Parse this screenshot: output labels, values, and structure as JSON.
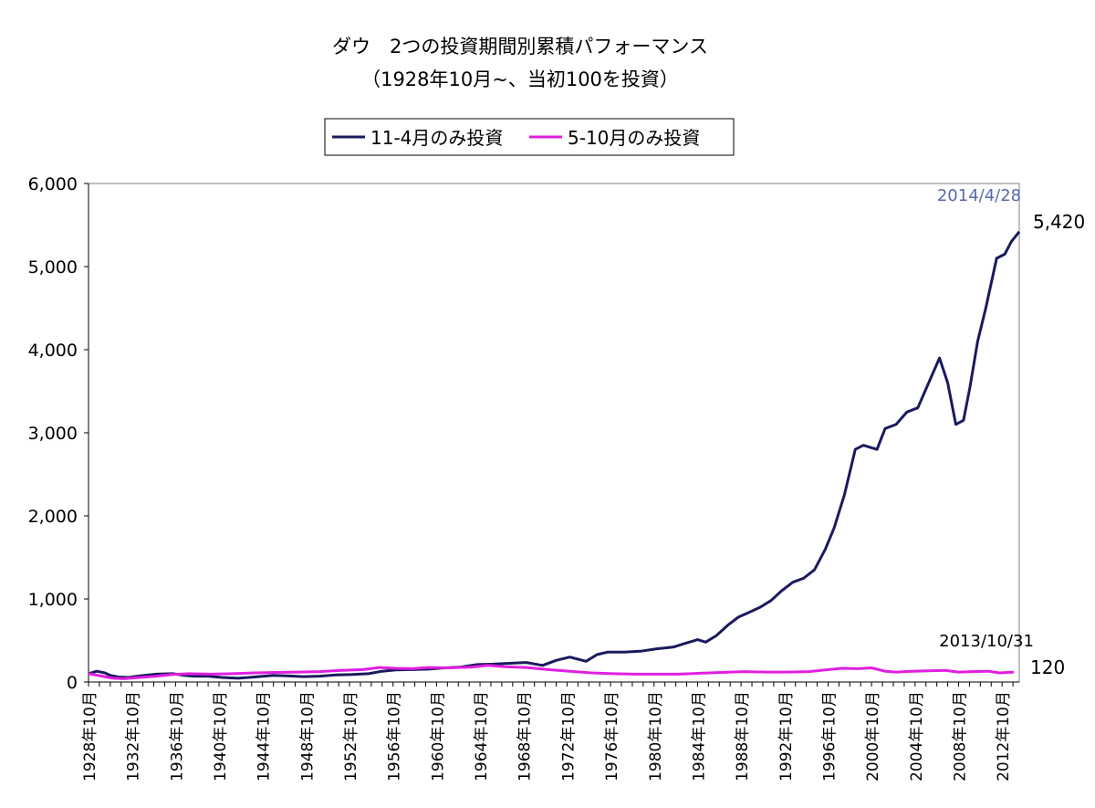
{
  "chart_data": {
    "type": "line",
    "title": "ダウ　2つの投資期間別累積パフォーマンス",
    "subtitle": "（1928年10月~、当初100を投資）",
    "xlabel": "",
    "ylabel": "",
    "ylim": [
      0,
      6000
    ],
    "yticks": [
      "6,000",
      "5,000",
      "4,000",
      "3,000",
      "2,000",
      "1,000",
      "0"
    ],
    "ytick_values": [
      6000,
      5000,
      4000,
      3000,
      2000,
      1000,
      0
    ],
    "xlim": [
      1928.75,
      2014.33
    ],
    "xticks": [
      "1928年10月",
      "1932年10月",
      "1936年10月",
      "1940年10月",
      "1944年10月",
      "1948年10月",
      "1952年10月",
      "1956年10月",
      "1960年10月",
      "1964年10月",
      "1968年10月",
      "1972年10月",
      "1976年10月",
      "1980年10月",
      "1984年10月",
      "1988年10月",
      "1992年10月",
      "1996年10月",
      "2000年10月",
      "2004年10月",
      "2008年10月",
      "2012年10月"
    ],
    "xtick_values": [
      1928.75,
      1932.75,
      1936.75,
      1940.75,
      1944.75,
      1948.75,
      1952.75,
      1956.75,
      1960.75,
      1964.75,
      1968.75,
      1972.75,
      1976.75,
      1980.75,
      1984.75,
      1988.75,
      1992.75,
      1996.75,
      2000.75,
      2004.75,
      2008.75,
      2012.75
    ],
    "grid": "horizontal",
    "legend": "top-center",
    "series": [
      {
        "name": "11-4月のみ投資",
        "color": "#1a1a5e",
        "x": [
          1928.75,
          1929.5,
          1930.25,
          1930.75,
          1931.5,
          1932.4,
          1933.5,
          1935.0,
          1936.5,
          1937.5,
          1938.5,
          1939.75,
          1941.0,
          1942.5,
          1944.0,
          1945.75,
          1947.0,
          1948.5,
          1950.0,
          1951.5,
          1953.0,
          1954.5,
          1955.75,
          1957.0,
          1958.5,
          1960.0,
          1961.5,
          1963.0,
          1964.5,
          1966.0,
          1967.5,
          1969.0,
          1970.5,
          1971.75,
          1973.0,
          1974.5,
          1975.5,
          1976.5,
          1978.0,
          1979.5,
          1981.0,
          1982.5,
          1983.75,
          1984.75,
          1985.5,
          1986.5,
          1987.5,
          1988.5,
          1989.5,
          1990.5,
          1991.5,
          1992.5,
          1993.5,
          1994.5,
          1995.5,
          1996.5,
          1997.3,
          1998.25,
          1999.25,
          2000.0,
          2000.75,
          2001.25,
          2002.0,
          2003.0,
          2004.0,
          2005.0,
          2006.0,
          2007.0,
          2007.75,
          2008.5,
          2009.2,
          2009.8,
          2010.5,
          2011.25,
          2012.25,
          2013.0,
          2013.6,
          2014.33
        ],
        "values": [
          100,
          130,
          110,
          80,
          60,
          55,
          75,
          95,
          100,
          80,
          70,
          70,
          55,
          45,
          60,
          80,
          75,
          65,
          70,
          85,
          90,
          100,
          130,
          145,
          150,
          155,
          170,
          180,
          210,
          215,
          225,
          235,
          200,
          260,
          300,
          250,
          330,
          360,
          360,
          370,
          400,
          420,
          470,
          510,
          480,
          560,
          680,
          780,
          840,
          900,
          980,
          1100,
          1200,
          1250,
          1350,
          1600,
          1850,
          2250,
          2800,
          2850,
          2820,
          2800,
          3050,
          3100,
          3250,
          3300,
          3600,
          3900,
          3600,
          3100,
          3150,
          3550,
          4100,
          4500,
          5100,
          5150,
          5300,
          5420
        ]
      },
      {
        "name": "5-10月のみ投資",
        "color": "#e020e0",
        "x": [
          1928.75,
          1930.0,
          1931.0,
          1932.0,
          1933.5,
          1935.0,
          1936.5,
          1938.0,
          1940.0,
          1942.0,
          1944.0,
          1946.0,
          1948.0,
          1950.0,
          1952.0,
          1954.0,
          1955.5,
          1957.0,
          1958.5,
          1960.0,
          1962.0,
          1964.0,
          1965.5,
          1967.0,
          1969.0,
          1971.0,
          1973.0,
          1975.0,
          1977.0,
          1979.0,
          1981.0,
          1983.0,
          1985.0,
          1987.0,
          1989.0,
          1991.0,
          1993.0,
          1995.0,
          1996.5,
          1998.0,
          1999.5,
          2000.75,
          2002.0,
          2003.0,
          2004.5,
          2006.0,
          2007.5,
          2008.75,
          2010.0,
          2011.5,
          2012.5,
          2013.83
        ],
        "values": [
          100,
          70,
          45,
          40,
          55,
          70,
          90,
          100,
          95,
          100,
          110,
          115,
          120,
          125,
          140,
          150,
          175,
          165,
          160,
          175,
          170,
          180,
          200,
          185,
          175,
          150,
          130,
          110,
          100,
          95,
          95,
          95,
          105,
          115,
          125,
          120,
          120,
          125,
          145,
          165,
          160,
          170,
          130,
          120,
          130,
          135,
          140,
          120,
          125,
          130,
          110,
          120
        ]
      }
    ],
    "annotations": [
      {
        "text": "2014/4/28",
        "color": "#5a6aa8",
        "series": 0,
        "x": 2014.33,
        "y": 5420
      },
      {
        "text": "5,420",
        "color": "#000000",
        "series": 0,
        "x": 2014.33,
        "y": 5420
      },
      {
        "text": "2013/10/31",
        "color": "#000000",
        "series": 1,
        "x": 2013.83,
        "y": 120
      },
      {
        "text": "120",
        "color": "#000000",
        "series": 1,
        "x": 2013.83,
        "y": 120
      }
    ]
  }
}
